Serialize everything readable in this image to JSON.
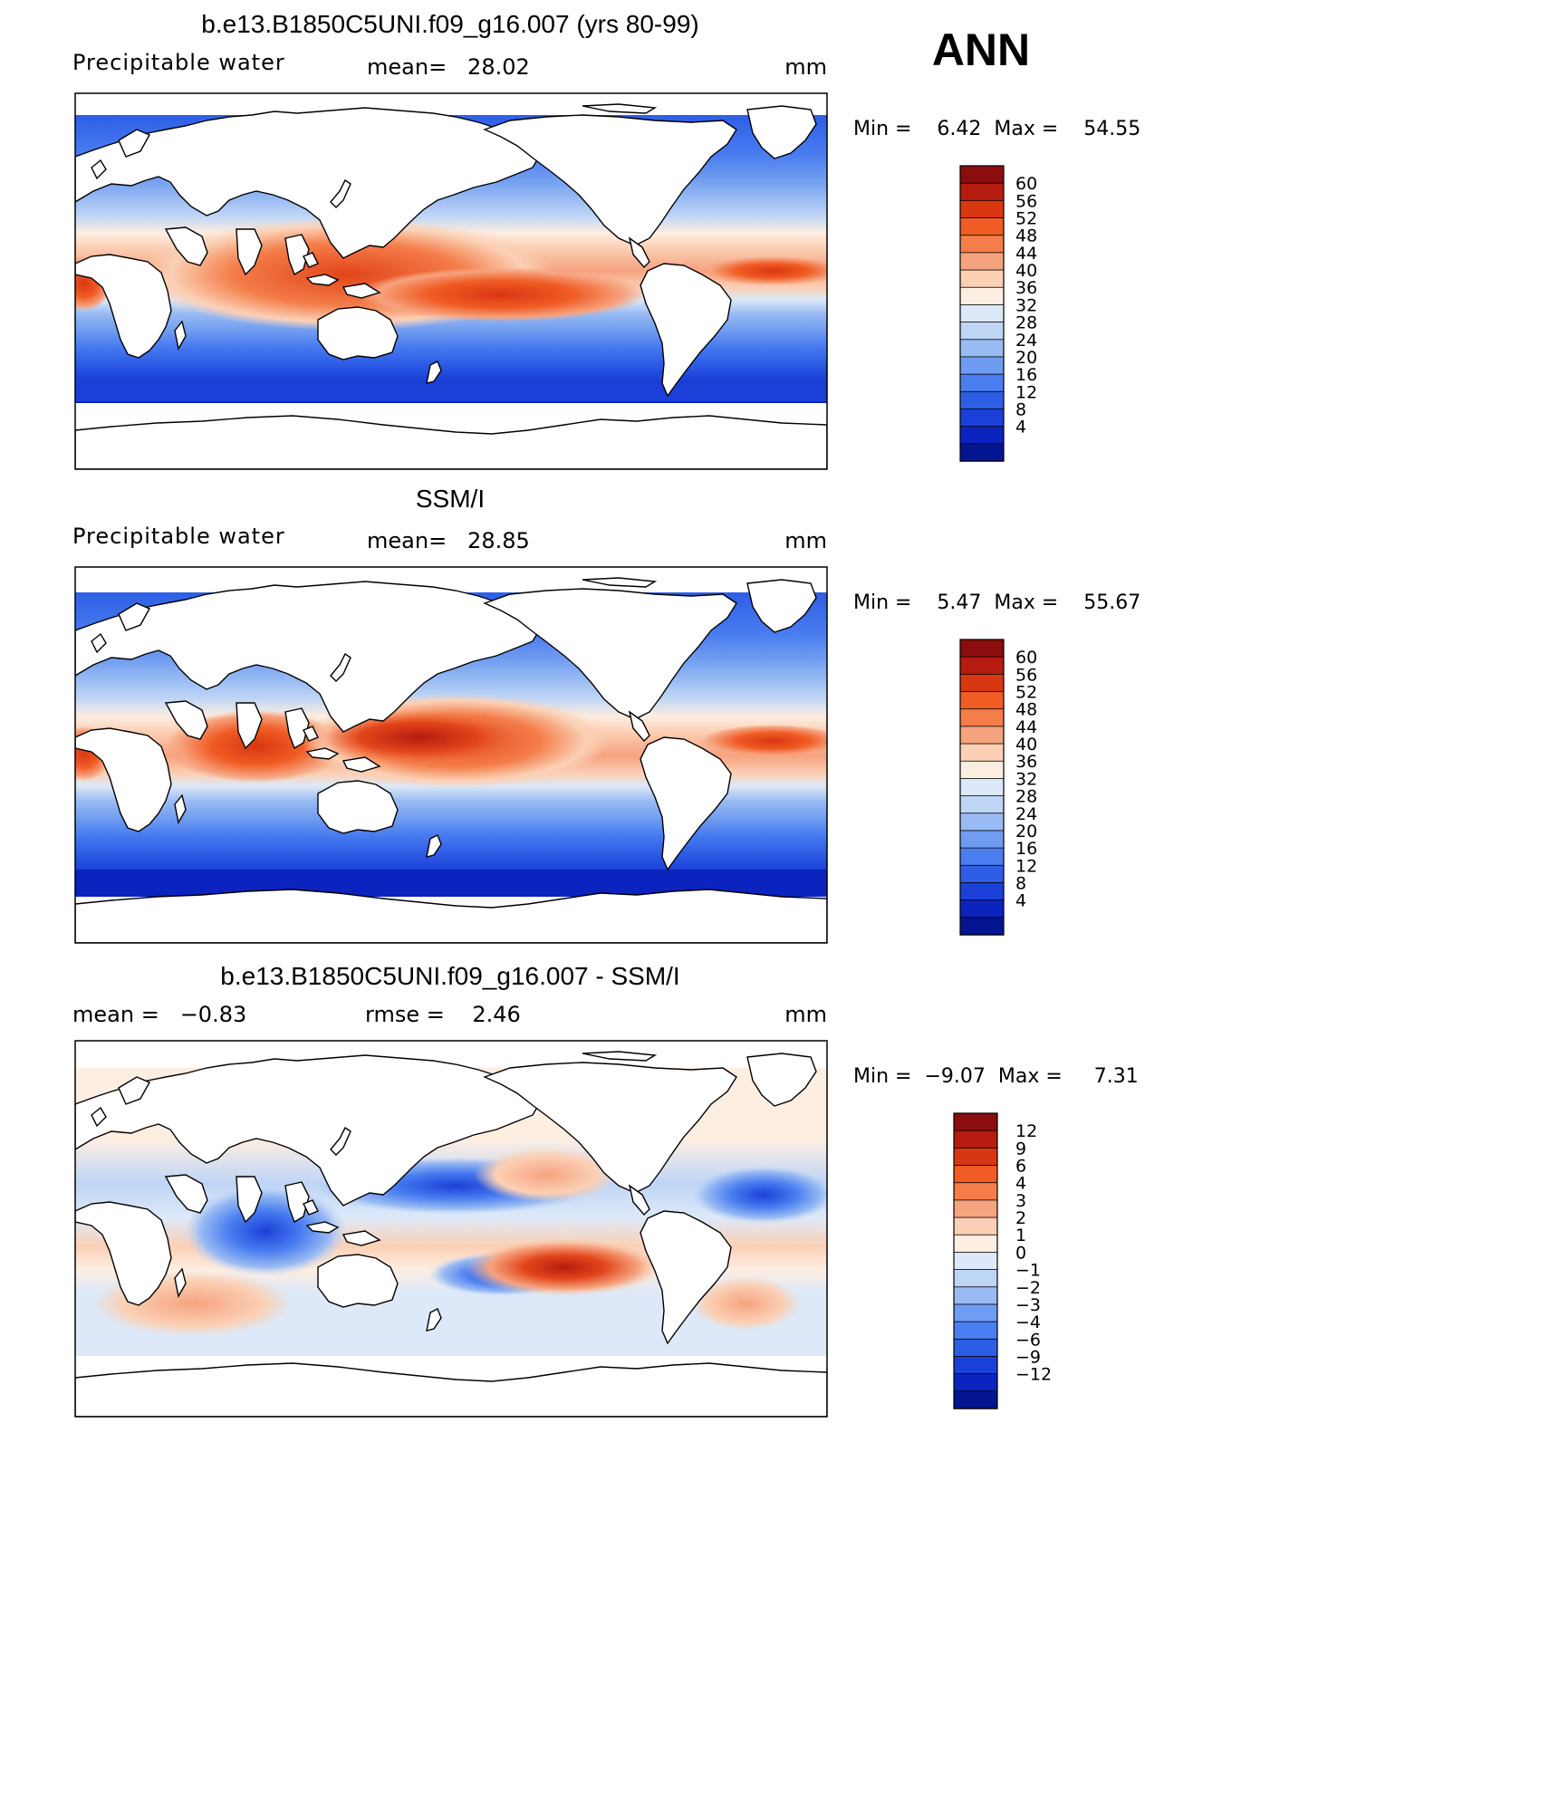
{
  "season": "ANN",
  "panels": [
    {
      "id": "model",
      "title": "b.e13.B1850C5UNI.f09_g16.007 (yrs 80-99)",
      "left_label": "Precipitable water",
      "center_label": "mean=   28.02",
      "units": "mm",
      "minmax": "Min =    6.42  Max =    54.55",
      "colorbar": {
        "labels": [
          "60",
          "56",
          "52",
          "48",
          "44",
          "40",
          "36",
          "32",
          "28",
          "24",
          "20",
          "16",
          "12",
          "8",
          "4"
        ],
        "colors": [
          "#8b0d0d",
          "#b51c0f",
          "#d93612",
          "#f05c24",
          "#f47d49",
          "#f6a37f",
          "#fbd0b5",
          "#fdeee2",
          "#dde9f8",
          "#bfd5f6",
          "#99bbf3",
          "#6f9cf0",
          "#4a7df0",
          "#2e5ee6",
          "#1a40d8",
          "#0b23bf",
          "#041592"
        ]
      }
    },
    {
      "id": "obs",
      "title": "SSM/I",
      "left_label": "Precipitable water",
      "center_label": "mean=   28.85",
      "units": "mm",
      "minmax": "Min =    5.47  Max =    55.67",
      "colorbar": {
        "labels": [
          "60",
          "56",
          "52",
          "48",
          "44",
          "40",
          "36",
          "32",
          "28",
          "24",
          "20",
          "16",
          "12",
          "8",
          "4"
        ],
        "colors": [
          "#8b0d0d",
          "#b51c0f",
          "#d93612",
          "#f05c24",
          "#f47d49",
          "#f6a37f",
          "#fbd0b5",
          "#fdeee2",
          "#dde9f8",
          "#bfd5f6",
          "#99bbf3",
          "#6f9cf0",
          "#4a7df0",
          "#2e5ee6",
          "#1a40d8",
          "#0b23bf",
          "#041592"
        ]
      }
    },
    {
      "id": "diff",
      "title": "b.e13.B1850C5UNI.f09_g16.007 - SSM/I",
      "left_label": "mean =   −0.83",
      "center_label": "rmse =    2.46",
      "units": "mm",
      "minmax": "Min =  −9.07  Max =     7.31",
      "colorbar": {
        "labels": [
          "12",
          "9",
          "6",
          "4",
          "3",
          "2",
          "1",
          "0",
          "−1",
          "−2",
          "−3",
          "−4",
          "−6",
          "−9",
          "−12"
        ],
        "colors": [
          "#8b0d0d",
          "#b51c0f",
          "#d93612",
          "#f05c24",
          "#f47d49",
          "#f6a37f",
          "#fbd0b5",
          "#fdeee2",
          "#dde9f8",
          "#bfd5f6",
          "#99bbf3",
          "#6f9cf0",
          "#4a7df0",
          "#2e5ee6",
          "#1a40d8",
          "#0b23bf",
          "#041592"
        ]
      }
    }
  ]
}
